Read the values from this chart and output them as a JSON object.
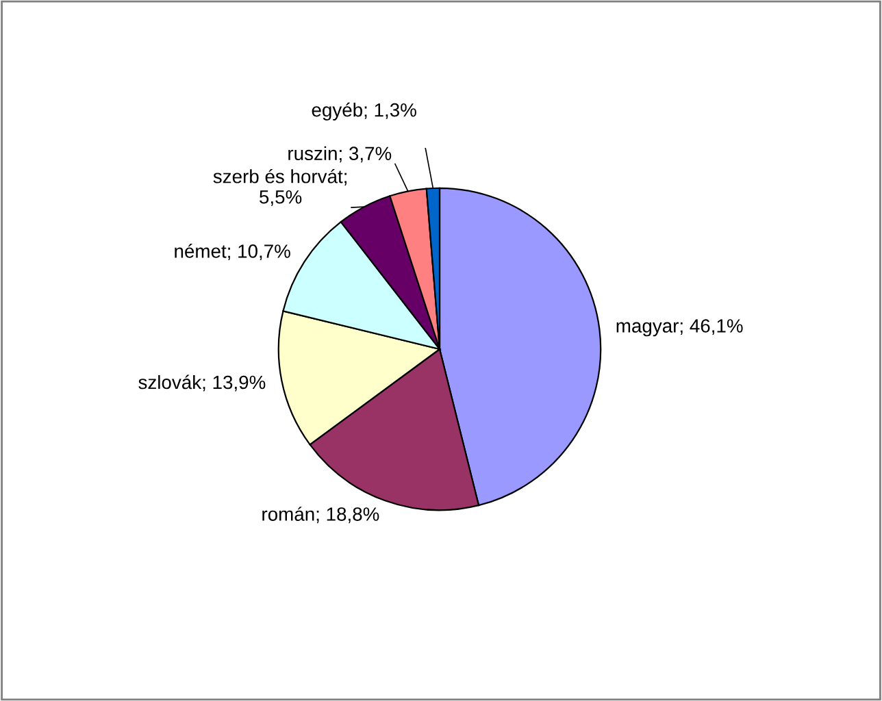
{
  "chart_data": {
    "type": "pie",
    "categories": [
      "magyar",
      "román",
      "szlovák",
      "német",
      "szerb és horvát",
      "ruszin",
      "egyéb"
    ],
    "values": [
      46.1,
      18.8,
      13.9,
      10.7,
      5.5,
      3.7,
      1.3
    ],
    "colors": [
      "#9999ff",
      "#993366",
      "#ffffcc",
      "#ccffff",
      "#660066",
      "#ff8080",
      "#0066cc"
    ],
    "value_labels": [
      "; 46,1%",
      "; 18,8%",
      "; 13,9%",
      "; 10,7%",
      ";\n5,5%",
      "; 3,7%",
      "; 1,3%"
    ],
    "legend": false
  }
}
